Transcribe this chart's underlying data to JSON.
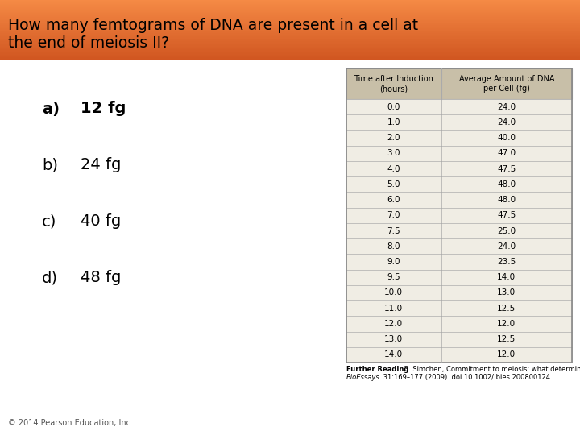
{
  "title_line1": "How many femtograms of DNA are present in a cell at",
  "title_line2": "the end of meiosis II?",
  "header_bg_top": "#F0956A",
  "header_bg_bottom": "#E8734A",
  "body_bg": "#FFFFFF",
  "question_options": [
    {
      "label": "a)",
      "text": "12 fg",
      "bold": true
    },
    {
      "label": "b)",
      "text": "24 fg",
      "bold": false
    },
    {
      "label": "c)",
      "text": "40 fg",
      "bold": false
    },
    {
      "label": "d)",
      "text": "48 fg",
      "bold": false
    }
  ],
  "table_col1_header": "Time after Induction\n(hours)",
  "table_col2_header": "Average Amount of DNA\nper Cell (fg)",
  "table_data": [
    [
      "0.0",
      "24.0"
    ],
    [
      "1.0",
      "24.0"
    ],
    [
      "2.0",
      "40.0"
    ],
    [
      "3.0",
      "47.0"
    ],
    [
      "4.0",
      "47.5"
    ],
    [
      "5.0",
      "48.0"
    ],
    [
      "6.0",
      "48.0"
    ],
    [
      "7.0",
      "47.5"
    ],
    [
      "7.5",
      "25.0"
    ],
    [
      "8.0",
      "24.0"
    ],
    [
      "9.0",
      "23.5"
    ],
    [
      "9.5",
      "14.0"
    ],
    [
      "10.0",
      "13.0"
    ],
    [
      "11.0",
      "12.5"
    ],
    [
      "12.0",
      "12.0"
    ],
    [
      "13.0",
      "12.5"
    ],
    [
      "14.0",
      "12.0"
    ]
  ],
  "further_reading_bold": "Further Reading",
  "further_reading_normal": " G. Simchen, Commitment to meiosis: what determines the mode of division in budding yeast?",
  "further_reading_italic": "BioEssays",
  "further_reading_end": " 31:169–177 (2009). doi 10.1002/ bies.200800124",
  "copyright": "© 2014 Pearson Education, Inc.",
  "table_header_bg": "#C8BFA8",
  "table_row_bg": "#F0EDE4",
  "table_border": "#AAAAAA",
  "table_outer_border": "#888888"
}
